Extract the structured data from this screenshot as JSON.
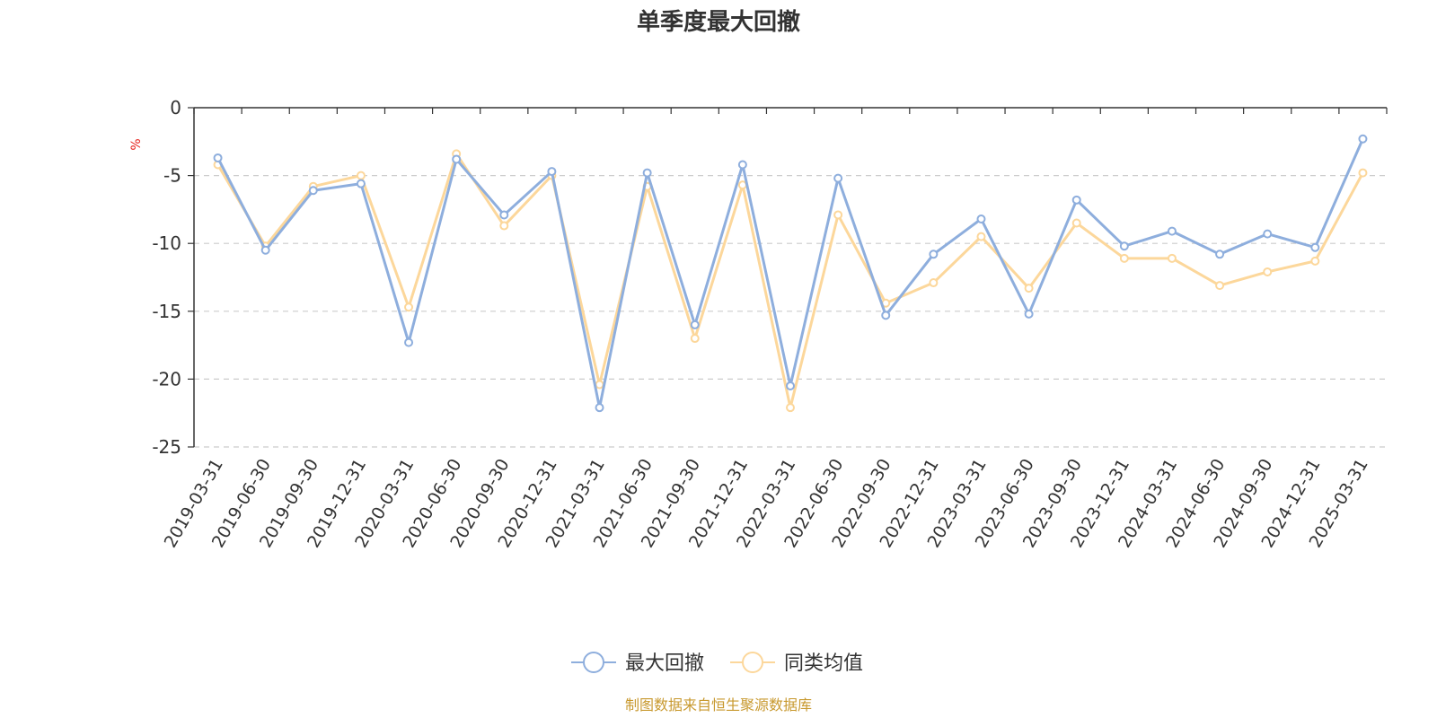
{
  "chart_data": {
    "type": "line",
    "title": "单季度最大回撤",
    "y_unit": "%",
    "ylim": [
      -25,
      0
    ],
    "y_ticks": [
      0,
      -5,
      -10,
      -15,
      -20,
      -25
    ],
    "y_tick_labels": [
      "0",
      "-5",
      "-10",
      "-15",
      "-20",
      "-25"
    ],
    "grid": "horizontal dashed",
    "legend_position": "bottom-center",
    "categories": [
      "2019-03-31",
      "2019-06-30",
      "2019-09-30",
      "2019-12-31",
      "2020-03-31",
      "2020-06-30",
      "2020-09-30",
      "2020-12-31",
      "2021-03-31",
      "2021-06-30",
      "2021-09-30",
      "2021-12-31",
      "2022-03-31",
      "2022-06-30",
      "2022-09-30",
      "2022-12-31",
      "2023-03-31",
      "2023-06-30",
      "2023-09-30",
      "2023-12-31",
      "2024-03-31",
      "2024-06-30",
      "2024-09-30",
      "2024-12-31",
      "2025-03-31"
    ],
    "series": [
      {
        "name": "最大回撤",
        "color": "#8eaedd",
        "values": [
          -3.7,
          -10.5,
          -6.1,
          -5.6,
          -17.3,
          -3.8,
          -7.9,
          -4.7,
          -22.1,
          -4.8,
          -16.0,
          -4.2,
          -20.5,
          -5.2,
          -15.3,
          -10.8,
          -8.2,
          -15.2,
          -6.8,
          -10.2,
          -9.1,
          -10.8,
          -9.3,
          -10.3,
          -2.3
        ]
      },
      {
        "name": "同类均值",
        "color": "#fcd79b",
        "values": [
          -4.2,
          -10.2,
          -5.8,
          -5.0,
          -14.7,
          -3.4,
          -8.7,
          -5.0,
          -20.4,
          -5.8,
          -17.0,
          -5.7,
          -22.1,
          -7.9,
          -14.4,
          -12.9,
          -9.5,
          -13.3,
          -8.5,
          -11.1,
          -11.1,
          -13.1,
          -12.1,
          -11.3,
          -4.8
        ]
      }
    ],
    "source": "制图数据来自恒生聚源数据库",
    "colors": {
      "axis": "#333333",
      "grid": "#cccccc",
      "unit": "#e6211c",
      "source": "#c8992f"
    }
  }
}
